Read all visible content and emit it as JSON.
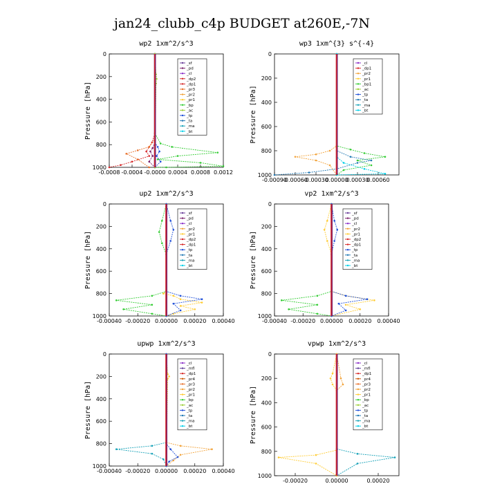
{
  "figure_title": "jan24_clubb_c4p  BUDGET at260E,-7N",
  "colors": {
    "_sf": "#6a3d9a",
    "_pd": "#7a1f6a",
    "_cl": "#8b2fc9",
    "_dp2": "#d62728",
    "_dp1": "#d62728",
    "_pr3": "#e8702a",
    "_pr2": "#f2a33a",
    "_pr1": "#ffcc33",
    "_pr4": "#cc5500",
    "_bp": "#33cc33",
    "_bp1": "#33cc33",
    "_ac": "#9acd32",
    "_tp": "#1f4fd8",
    "_ta": "#1f78b4",
    "_ma": "#17a2b8",
    "_bt": "#00cfe8",
    "_mfl": "#5e3c99",
    "_pr1b": "#ffcc33"
  },
  "chart_data": [
    {
      "type": "line",
      "title": "wp2   1xm^2/s^3",
      "ylabel": "Pressure [hPa]",
      "xlim": [
        -0.0008,
        0.0012
      ],
      "ylim": [
        1000,
        0
      ],
      "xticks": [
        "-0.0008",
        "-0.0004",
        "-0.0000",
        "0.0004",
        "0.0008",
        "0.0012"
      ],
      "xtickvals": [
        -0.0008,
        -0.0004,
        0.0,
        0.0004,
        0.0008,
        0.0012
      ],
      "yticks": [
        "0",
        "200",
        "400",
        "600",
        "800",
        "1000"
      ],
      "legend": [
        "_sf",
        "_pd",
        "_cl",
        "_dp2",
        "_dp1",
        "_pr3",
        "_pr2",
        "_pr1",
        "_bp",
        "_ac",
        "_tp",
        "_ta",
        "_ma",
        "_bt"
      ],
      "series": [
        {
          "name": "_bp",
          "x": [
            0.0,
            0.0,
            0.0001,
            0.0003,
            0.0011,
            0.0004,
            5e-05,
            0.0008,
            0.0012,
            0.0002,
            0.0
          ],
          "y": [
            0,
            700,
            790,
            820,
            870,
            900,
            930,
            960,
            990,
            1000,
            1000
          ]
        },
        {
          "name": "_dp2",
          "x": [
            0.0,
            0.0,
            -5e-05,
            -0.0001,
            -0.00015,
            -0.0001,
            -0.0004,
            -0.0006,
            -0.0008
          ],
          "y": [
            0,
            700,
            780,
            820,
            860,
            900,
            950,
            980,
            1000
          ]
        },
        {
          "name": "_pr3",
          "x": [
            0.0,
            0.0,
            -0.0001,
            -0.0003,
            -0.0005,
            -0.0003,
            -0.0001
          ],
          "y": [
            0,
            750,
            820,
            850,
            880,
            930,
            1000
          ]
        },
        {
          "name": "_pd",
          "x": [
            0.0,
            0.0,
            -4e-05,
            -8e-05,
            -4e-05,
            -0.0001,
            0.0
          ],
          "y": [
            0,
            780,
            830,
            860,
            900,
            950,
            1000
          ]
        },
        {
          "name": "_tp",
          "x": [
            0.0,
            0.0,
            5e-05,
            8e-05,
            3e-05,
            0.0001,
            0.0
          ],
          "y": [
            0,
            780,
            820,
            860,
            900,
            950,
            1000
          ]
        },
        {
          "name": "_ac",
          "x": [
            0.0,
            2e-05,
            3e-05,
            2e-05,
            0.0
          ],
          "y": [
            0,
            180,
            220,
            260,
            1000
          ]
        },
        {
          "name": "_sf",
          "x": [
            0.0,
            0.0
          ],
          "y": [
            0,
            1000
          ]
        }
      ]
    },
    {
      "type": "line",
      "title": "wp3   1xm^{3} s^{-4}",
      "ylabel": "Pressure [hPa]",
      "xlim": [
        -0.0009,
        0.0009
      ],
      "ylim": [
        1000,
        0
      ],
      "xticks": [
        "-0.00090",
        "-0.00060",
        "-0.00030",
        "0.00000",
        "0.00030",
        "0.00060"
      ],
      "xtickvals": [
        -0.0009,
        -0.0006,
        -0.0003,
        0.0,
        0.0003,
        0.0006
      ],
      "yticks": [
        "0",
        "200",
        "400",
        "600",
        "800",
        "1000"
      ],
      "legend": [
        "_cl",
        "_dp1",
        "_pr2",
        "_pr1",
        "_bp1",
        "_ac",
        "_tp",
        "_ta",
        "_ma",
        "_bt"
      ],
      "series": [
        {
          "name": "_bp1",
          "x": [
            0.0,
            0.0,
            0.0002,
            0.0004,
            0.0007,
            0.0003,
            0.0005,
            0.0001,
            0.0
          ],
          "y": [
            0,
            760,
            790,
            820,
            850,
            880,
            920,
            960,
            1000
          ]
        },
        {
          "name": "_pr2",
          "x": [
            0.0,
            0.0,
            -0.0001,
            -0.0003,
            -0.0006,
            -0.0003,
            -0.0001,
            0.0
          ],
          "y": [
            0,
            760,
            800,
            830,
            850,
            880,
            920,
            1000
          ]
        },
        {
          "name": "_ta",
          "x": [
            0.0,
            0.0,
            0.0002,
            0.0005,
            0.0003,
            0.0,
            -0.0004,
            -0.0009
          ],
          "y": [
            0,
            800,
            850,
            880,
            900,
            950,
            980,
            1000
          ]
        },
        {
          "name": "_bt",
          "x": [
            0.0,
            0.0,
            0.0001,
            0.0004,
            0.0007,
            0.0
          ],
          "y": [
            0,
            850,
            900,
            950,
            990,
            1000
          ]
        },
        {
          "name": "_dp1",
          "x": [
            0.0,
            0.0
          ],
          "y": [
            0,
            1000
          ]
        }
      ]
    },
    {
      "type": "line",
      "title": "up2   1xm^2/s^3",
      "ylabel": "Pressure [hPa]",
      "xlim": [
        -0.0004,
        0.0004
      ],
      "ylim": [
        1000,
        0
      ],
      "xticks": [
        "-0.00040",
        "-0.00020",
        "0.00000",
        "0.00020",
        "0.00040"
      ],
      "xtickvals": [
        -0.0004,
        -0.0002,
        0.0,
        0.0002,
        0.0004
      ],
      "yticks": [
        "0",
        "200",
        "400",
        "600",
        "800",
        "1000"
      ],
      "legend": [
        "_sf",
        "_pd",
        "_cl",
        "_pr2",
        "_pr1",
        "_dp2",
        "_dp1",
        "_tp",
        "_ta",
        "_ma",
        "_bt"
      ],
      "series": [
        {
          "name": "_pr1",
          "x": [
            0.0,
            0.0,
            -2e-05,
            5e-05,
            0.0001,
            0.00025,
            0.0001,
            0.0002,
            5e-05,
            0.0
          ],
          "y": [
            0,
            770,
            800,
            820,
            850,
            880,
            910,
            940,
            980,
            1000
          ]
        },
        {
          "name": "_bp",
          "x": [
            0.0,
            -3e-05,
            -5e-05,
            -3e-05,
            0.0,
            0.0,
            -0.0001,
            -0.00035,
            -0.0001,
            -0.0003,
            -0.0001,
            0.0
          ],
          "y": [
            0,
            150,
            250,
            350,
            450,
            780,
            820,
            860,
            900,
            940,
            980,
            1000
          ]
        },
        {
          "name": "_tp",
          "x": [
            0.0,
            3e-05,
            5e-05,
            3e-05,
            0.0,
            0.0,
            0.0001,
            0.00025,
            5e-05,
            0.0001,
            0.0
          ],
          "y": [
            0,
            150,
            230,
            330,
            450,
            780,
            820,
            850,
            890,
            950,
            1000
          ]
        },
        {
          "name": "_dp2",
          "x": [
            0.0,
            0.0
          ],
          "y": [
            0,
            1000
          ]
        }
      ]
    },
    {
      "type": "line",
      "title": "vp2   1xm^2/s^3",
      "ylabel": "Pressure [hPa]",
      "xlim": [
        -0.0004,
        0.0004
      ],
      "ylim": [
        1000,
        0
      ],
      "xticks": [
        "-0.00040",
        "-0.00020",
        "0.00000",
        "0.00020",
        "0.00040"
      ],
      "xtickvals": [
        -0.0004,
        -0.0002,
        0.0,
        0.0002,
        0.0004
      ],
      "yticks": [
        "0",
        "200",
        "400",
        "600",
        "800",
        "1000"
      ],
      "legend": [
        "_sf",
        "_pd",
        "_cl",
        "_pr2",
        "_pr1",
        "_dp2",
        "_dp1",
        "_tp",
        "_ta",
        "_ma",
        "_bt"
      ],
      "series": [
        {
          "name": "_pr1",
          "x": [
            0.0,
            -3e-05,
            -5e-05,
            -3e-05,
            0.0,
            0.0,
            0.0001,
            0.0003,
            0.0001,
            0.0002,
            0.0
          ],
          "y": [
            0,
            150,
            230,
            330,
            450,
            780,
            820,
            860,
            900,
            940,
            1000
          ]
        },
        {
          "name": "_bp",
          "x": [
            0.0,
            0.0,
            -0.0001,
            -0.00035,
            -0.0001,
            -0.0003,
            -0.0001,
            0.0
          ],
          "y": [
            0,
            780,
            820,
            860,
            900,
            940,
            980,
            1000
          ]
        },
        {
          "name": "_tp",
          "x": [
            0.0,
            2e-05,
            4e-05,
            2e-05,
            0.0,
            0.0,
            0.0001,
            0.00025,
            5e-05,
            0.0001,
            0.0
          ],
          "y": [
            0,
            150,
            230,
            330,
            450,
            780,
            820,
            850,
            890,
            950,
            1000
          ]
        },
        {
          "name": "_dp2",
          "x": [
            0.0,
            0.0
          ],
          "y": [
            0,
            1000
          ]
        }
      ]
    },
    {
      "type": "line",
      "title": "upwp   1xm^2/s^3",
      "ylabel": "Pressure [hPa]",
      "xlim": [
        -0.0004,
        0.0004
      ],
      "ylim": [
        1000,
        0
      ],
      "xticks": [
        "-0.00040",
        "-0.00020",
        "0.00000",
        "0.00020",
        "0.00040"
      ],
      "xtickvals": [
        -0.0004,
        -0.0002,
        0.0,
        0.0002,
        0.0004
      ],
      "yticks": [
        "0",
        "200",
        "400",
        "600",
        "800",
        "1000"
      ],
      "legend": [
        "_cl",
        "_mfl",
        "_dp1",
        "_pr4",
        "_pr3",
        "_pr2",
        "_pr1",
        "_bp",
        "_ac",
        "_tp",
        "_ta",
        "_ma",
        "_bt"
      ],
      "series": [
        {
          "name": "_pr2",
          "x": [
            0.0,
            0.0,
            0.0001,
            0.00032,
            0.0001,
            5e-05,
            0.0
          ],
          "y": [
            0,
            790,
            820,
            850,
            900,
            950,
            1000
          ]
        },
        {
          "name": "_ma",
          "x": [
            0.0,
            0.0,
            -0.0001,
            -0.00035,
            -0.0001,
            -2e-05,
            0.0
          ],
          "y": [
            0,
            790,
            820,
            850,
            890,
            940,
            1000
          ]
        },
        {
          "name": "_pr1",
          "x": [
            0.0,
            1e-05,
            2e-05,
            1e-05,
            0.0
          ],
          "y": [
            0,
            180,
            200,
            220,
            1000
          ]
        },
        {
          "name": "_tp",
          "x": [
            0.0,
            0.0,
            3e-05,
            8e-05,
            2e-05,
            0.0
          ],
          "y": [
            0,
            800,
            850,
            920,
            960,
            1000
          ]
        },
        {
          "name": "_dp1",
          "x": [
            0.0,
            0.0
          ],
          "y": [
            0,
            1000
          ]
        }
      ]
    },
    {
      "type": "line",
      "title": "vpwp   1xm^2/s^3",
      "ylabel": "Pressure [hPa]",
      "xlim": [
        -0.0003,
        0.0003
      ],
      "ylim": [
        1000,
        0
      ],
      "xticks": [
        "-0.00020",
        "0.00000",
        "0.00020"
      ],
      "xtickvals": [
        -0.0002,
        0.0,
        0.0002
      ],
      "yticks": [
        "0",
        "200",
        "400",
        "600",
        "800",
        "1000"
      ],
      "legend": [
        "_cl",
        "_mfl",
        "_dp1",
        "_pr4",
        "_pr3",
        "_pr2",
        "_pr1",
        "_bp",
        "_ac",
        "_tp",
        "_ta",
        "_ma",
        "_bt"
      ],
      "series": [
        {
          "name": "_ma",
          "x": [
            0.0,
            0.0,
            0.0001,
            0.00028,
            0.0001,
            0.0
          ],
          "y": [
            0,
            780,
            820,
            850,
            900,
            1000
          ]
        },
        {
          "name": "_pr1",
          "x": [
            0.0,
            -2e-05,
            -3e-05,
            -2e-05,
            0.0,
            0.0,
            -0.0001,
            -0.00028,
            -0.0001,
            0.0
          ],
          "y": [
            0,
            160,
            200,
            250,
            300,
            790,
            830,
            850,
            900,
            1000
          ]
        },
        {
          "name": "_pr2",
          "x": [
            0.0,
            2e-05,
            3e-05,
            0.0
          ],
          "y": [
            0,
            200,
            250,
            300
          ]
        },
        {
          "name": "_dp1",
          "x": [
            0.0,
            0.0
          ],
          "y": [
            0,
            1000
          ]
        }
      ]
    }
  ]
}
